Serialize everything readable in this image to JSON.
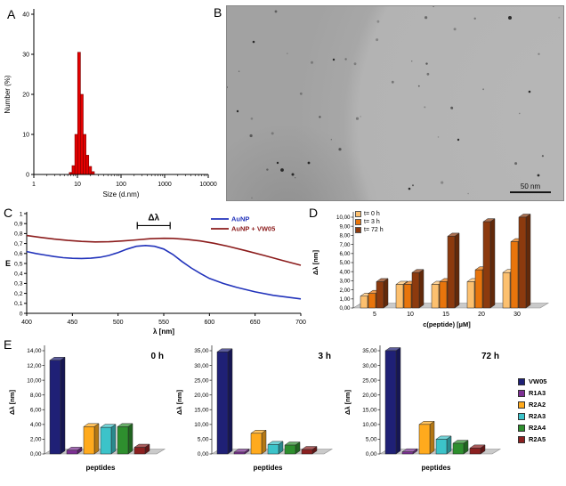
{
  "panels": {
    "a": {
      "label": "A"
    },
    "b": {
      "label": "B",
      "scale_bar": "50 nm"
    },
    "c": {
      "label": "C"
    },
    "d": {
      "label": "D"
    },
    "e": {
      "label": "E"
    }
  },
  "peptide_legend": [
    {
      "name": "VW05",
      "color": "#1f2076"
    },
    {
      "name": "R1A3",
      "color": "#7d3094"
    },
    {
      "name": "R2A2",
      "color": "#ffaa1d"
    },
    {
      "name": "R2A3",
      "color": "#3cc3c9"
    },
    {
      "name": "R2A4",
      "color": "#2e8f2e"
    },
    {
      "name": "R2A5",
      "color": "#8b2020"
    }
  ],
  "chart_data": [
    {
      "id": "A",
      "type": "bar",
      "xlabel": "Size (d.nm)",
      "ylabel": "Number (%)",
      "x_scale": "log",
      "xlim": [
        1,
        10000
      ],
      "ylim": [
        0,
        40
      ],
      "y_ticks": [
        0,
        10,
        20,
        30,
        40
      ],
      "x_ticks": [
        1,
        10,
        100,
        1000,
        10000
      ],
      "bar_color": "#e30000",
      "bar_edge": "#7a0000",
      "x": [
        7.0,
        8.1,
        9.4,
        10.9,
        12.6,
        14.6,
        16.9,
        19.6,
        22.7
      ],
      "values": [
        0.5,
        2.2,
        10.0,
        30.5,
        20.0,
        10.0,
        4.8,
        2.0,
        0.7
      ]
    },
    {
      "id": "C",
      "type": "line",
      "xlabel": "λ [nm]",
      "ylabel": "E",
      "xlim": [
        400,
        700
      ],
      "ylim": [
        0,
        1
      ],
      "x_tick_step": 50,
      "y_tick_step": 0.1,
      "annotation": {
        "label": "Δλ",
        "x1": 521,
        "x2": 557,
        "y": 0.88
      },
      "legend_position": "top-right",
      "series": [
        {
          "name": "AuNP",
          "color": "#2233bb",
          "x": [
            400,
            410,
            420,
            430,
            440,
            450,
            460,
            470,
            480,
            490,
            500,
            510,
            520,
            530,
            540,
            550,
            560,
            570,
            580,
            590,
            600,
            615,
            630,
            650,
            670,
            700
          ],
          "y": [
            0.62,
            0.6,
            0.585,
            0.57,
            0.558,
            0.552,
            0.55,
            0.553,
            0.562,
            0.58,
            0.61,
            0.645,
            0.672,
            0.68,
            0.672,
            0.645,
            0.59,
            0.52,
            0.455,
            0.4,
            0.35,
            0.3,
            0.26,
            0.215,
            0.18,
            0.145
          ]
        },
        {
          "name": "AuNP + VW05",
          "color": "#8b1b1b",
          "x": [
            400,
            415,
            430,
            445,
            460,
            475,
            490,
            505,
            520,
            535,
            550,
            560,
            575,
            590,
            605,
            620,
            640,
            660,
            680,
            700
          ],
          "y": [
            0.78,
            0.762,
            0.745,
            0.731,
            0.721,
            0.716,
            0.718,
            0.726,
            0.737,
            0.748,
            0.753,
            0.752,
            0.742,
            0.726,
            0.703,
            0.673,
            0.628,
            0.58,
            0.53,
            0.482
          ]
        }
      ]
    },
    {
      "id": "D",
      "type": "bar3d",
      "xlabel": "c(peptide) [µM]",
      "ylabel": "Δλ [nm]",
      "ylim": [
        0,
        10
      ],
      "y_tick_step": 1,
      "decimals": 2,
      "categories": [
        "5",
        "10",
        "15",
        "20",
        "30"
      ],
      "series": [
        {
          "name": "t= 0 h",
          "color": "#fcc06f",
          "values": [
            1.3,
            2.6,
            2.6,
            2.9,
            3.9
          ]
        },
        {
          "name": "t= 3 h",
          "color": "#e8750c",
          "values": [
            1.6,
            2.6,
            2.9,
            4.2,
            7.3
          ]
        },
        {
          "name": "t= 72 h",
          "color": "#8c3a0e",
          "values": [
            2.9,
            3.9,
            7.9,
            9.5,
            10.0
          ]
        }
      ]
    },
    {
      "id": "E1",
      "type": "bar3d",
      "title": "0 h",
      "xlabel": "peptides",
      "ylabel": "Δλ [nm]",
      "ylim": [
        0,
        14
      ],
      "y_tick_step": 2,
      "decimals": 2,
      "categories": [
        "VW05",
        "R1A3",
        "R2A2",
        "R2A3",
        "R2A4",
        "R2A5"
      ],
      "values": [
        12.7,
        0.5,
        3.7,
        3.6,
        3.7,
        0.9
      ]
    },
    {
      "id": "E2",
      "type": "bar3d",
      "title": "3 h",
      "xlabel": "peptides",
      "ylabel": "Δλ [nm]",
      "ylim": [
        0,
        35
      ],
      "y_tick_step": 5,
      "decimals": 2,
      "categories": [
        "VW05",
        "R1A3",
        "R2A2",
        "R2A3",
        "R2A4",
        "R2A5"
      ],
      "values": [
        34.6,
        0.6,
        7.0,
        3.2,
        3.0,
        1.5
      ]
    },
    {
      "id": "E3",
      "type": "bar3d",
      "title": "72 h",
      "xlabel": "peptides",
      "ylabel": "Δλ [nm]",
      "ylim": [
        0,
        35
      ],
      "y_tick_step": 5,
      "decimals": 2,
      "categories": [
        "VW05",
        "R1A3",
        "R2A2",
        "R2A3",
        "R2A4",
        "R2A5"
      ],
      "values": [
        35.0,
        0.7,
        10.0,
        5.0,
        3.6,
        2.0
      ]
    }
  ]
}
